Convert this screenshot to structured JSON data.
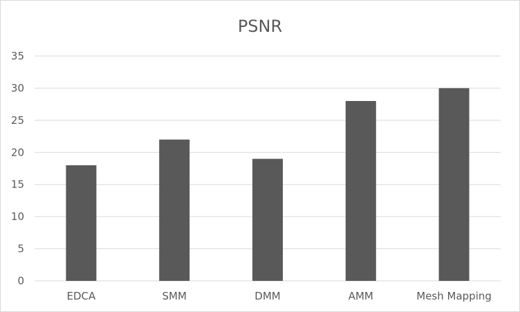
{
  "chart_data": {
    "type": "bar",
    "title": "PSNR",
    "xlabel": "",
    "ylabel": "",
    "categories": [
      "EDCA",
      "SMM",
      "DMM",
      "AMM",
      "Mesh Mapping"
    ],
    "values": [
      18,
      22,
      19,
      28,
      30
    ],
    "ylim": [
      0,
      35
    ],
    "yticks": [
      0,
      5,
      10,
      15,
      20,
      25,
      30,
      35
    ],
    "grid": true,
    "legend": "none",
    "bar_color": "#595959",
    "grid_color": "#d9d9d9"
  }
}
